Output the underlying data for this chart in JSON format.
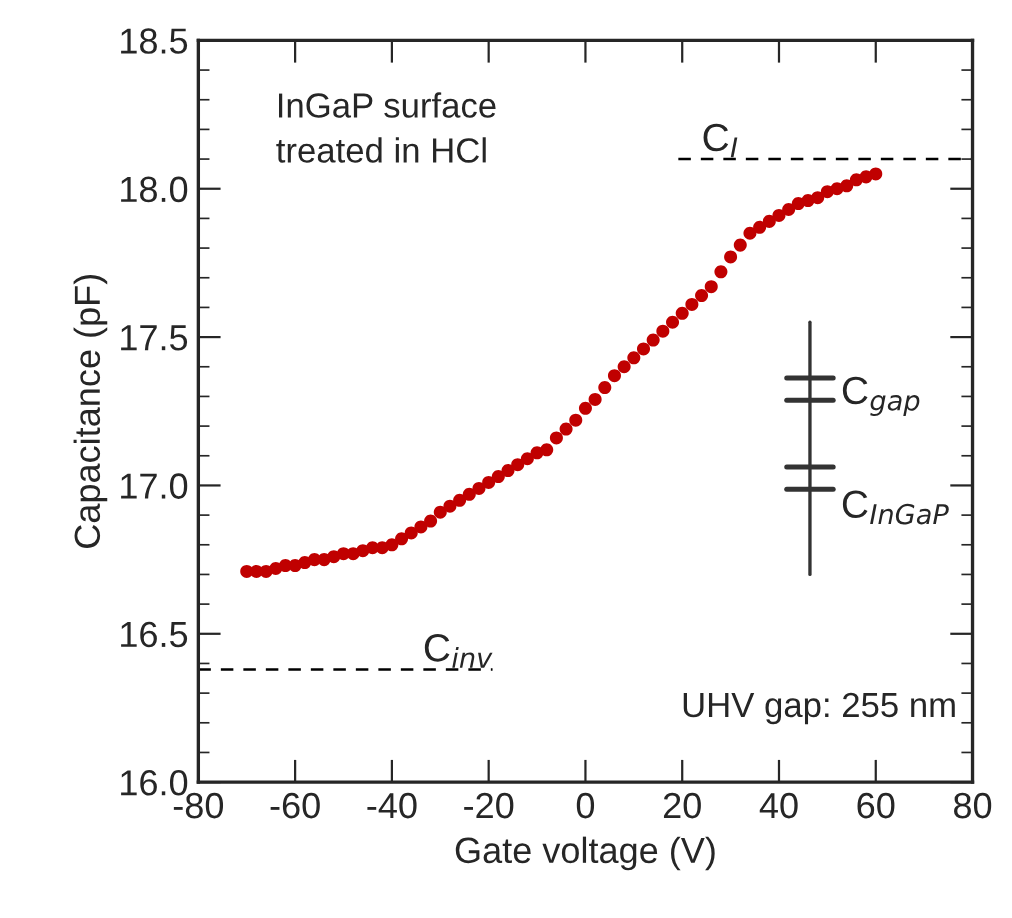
{
  "chart_data": {
    "type": "scatter",
    "xlabel": "Gate voltage (V)",
    "ylabel": "Capacitance (pF)",
    "xlim": [
      -80,
      80
    ],
    "xticks": [
      -80,
      -60,
      -40,
      -20,
      0,
      20,
      40,
      60,
      80
    ],
    "ylim": [
      16.0,
      18.5
    ],
    "yticks": [
      {
        "value": 16.0,
        "label": "16.0"
      },
      16.5,
      {
        "value": 17.0,
        "label": "17.0"
      },
      17.5,
      {
        "value": 18.0,
        "label": "18.0"
      },
      18.5
    ],
    "grid": false,
    "legend": false,
    "marker": "circle",
    "series": [
      {
        "color": "#c00000",
        "x": [
          -70,
          -68,
          -66,
          -64,
          -62,
          -60,
          -58,
          -56,
          -54,
          -52,
          -50,
          -48,
          -46,
          -44,
          -42,
          -40,
          -38,
          -36,
          -34,
          -32,
          -30,
          -28,
          -26,
          -24,
          -22,
          -20,
          -18,
          -16,
          -14,
          -12,
          -10,
          -8,
          -6,
          -4,
          -2,
          0,
          2,
          4,
          6,
          8,
          10,
          12,
          14,
          16,
          18,
          20,
          22,
          24,
          26,
          28,
          30,
          32,
          34,
          36,
          38,
          40,
          42,
          44,
          46,
          48,
          50,
          52,
          54,
          56,
          58,
          60
        ],
        "values": [
          16.71,
          16.71,
          16.71,
          16.72,
          16.73,
          16.73,
          16.74,
          16.75,
          16.75,
          16.76,
          16.77,
          16.77,
          16.78,
          16.79,
          16.79,
          16.8,
          16.82,
          16.84,
          16.86,
          16.88,
          16.91,
          16.93,
          16.95,
          16.97,
          16.99,
          17.01,
          17.03,
          17.05,
          17.07,
          17.09,
          17.11,
          17.12,
          17.16,
          17.19,
          17.22,
          17.26,
          17.29,
          17.33,
          17.37,
          17.4,
          17.43,
          17.46,
          17.49,
          17.52,
          17.55,
          17.58,
          17.61,
          17.64,
          17.67,
          17.72,
          17.77,
          17.81,
          17.85,
          17.87,
          17.89,
          17.91,
          17.93,
          17.95,
          17.96,
          17.97,
          17.99,
          18.0,
          18.01,
          18.03,
          18.04,
          18.05
        ]
      }
    ],
    "ref_lines": [
      {
        "axis": "y",
        "value": 18.1,
        "label": "C$_{I}$",
        "color": "#000000",
        "line_style": "dashed"
      },
      {
        "axis": "y",
        "value": 16.38,
        "label": "C$_{inv}$",
        "color": "#000000",
        "line_style": "dashed"
      }
    ],
    "annotations": [
      "InGaP surface\ntreated in HCl",
      "C$_{gap}$",
      "C$_{InGaP}$",
      "UHV gap: 255 nm"
    ]
  }
}
